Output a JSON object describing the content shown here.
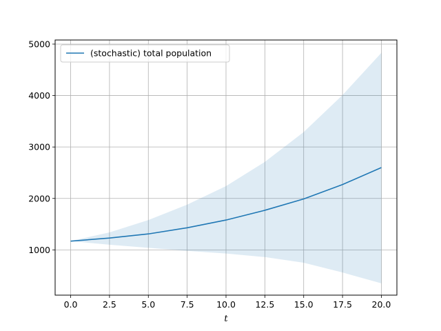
{
  "chart_data": {
    "type": "line",
    "title": "",
    "xlabel": "t",
    "ylabel": "",
    "xlim": [
      -1.0,
      21.0
    ],
    "ylim": [
      120,
      5080
    ],
    "grid": true,
    "legend_position": "top-left",
    "x_ticks": [
      0.0,
      2.5,
      5.0,
      7.5,
      10.0,
      12.5,
      15.0,
      17.5,
      20.0
    ],
    "x_tick_labels": [
      "0.0",
      "2.5",
      "5.0",
      "7.5",
      "10.0",
      "12.5",
      "15.0",
      "17.5",
      "20.0"
    ],
    "y_ticks": [
      1000,
      2000,
      3000,
      4000,
      5000
    ],
    "y_tick_labels": [
      "1000",
      "2000",
      "3000",
      "4000",
      "5000"
    ],
    "x": [
      0,
      2.5,
      5,
      7.5,
      10,
      12.5,
      15,
      17.5,
      20
    ],
    "series": [
      {
        "name": "(stochastic) total population",
        "color": "#1f77b4",
        "values": [
          1170,
          1230,
          1310,
          1430,
          1580,
          1770,
          1990,
          2270,
          2600
        ]
      }
    ],
    "band": {
      "color": "#1f77b4",
      "upper": [
        1170,
        1340,
        1580,
        1880,
        2240,
        2710,
        3290,
        4010,
        4830
      ],
      "lower": [
        1170,
        1100,
        1040,
        980,
        930,
        860,
        750,
        560,
        350
      ]
    }
  }
}
